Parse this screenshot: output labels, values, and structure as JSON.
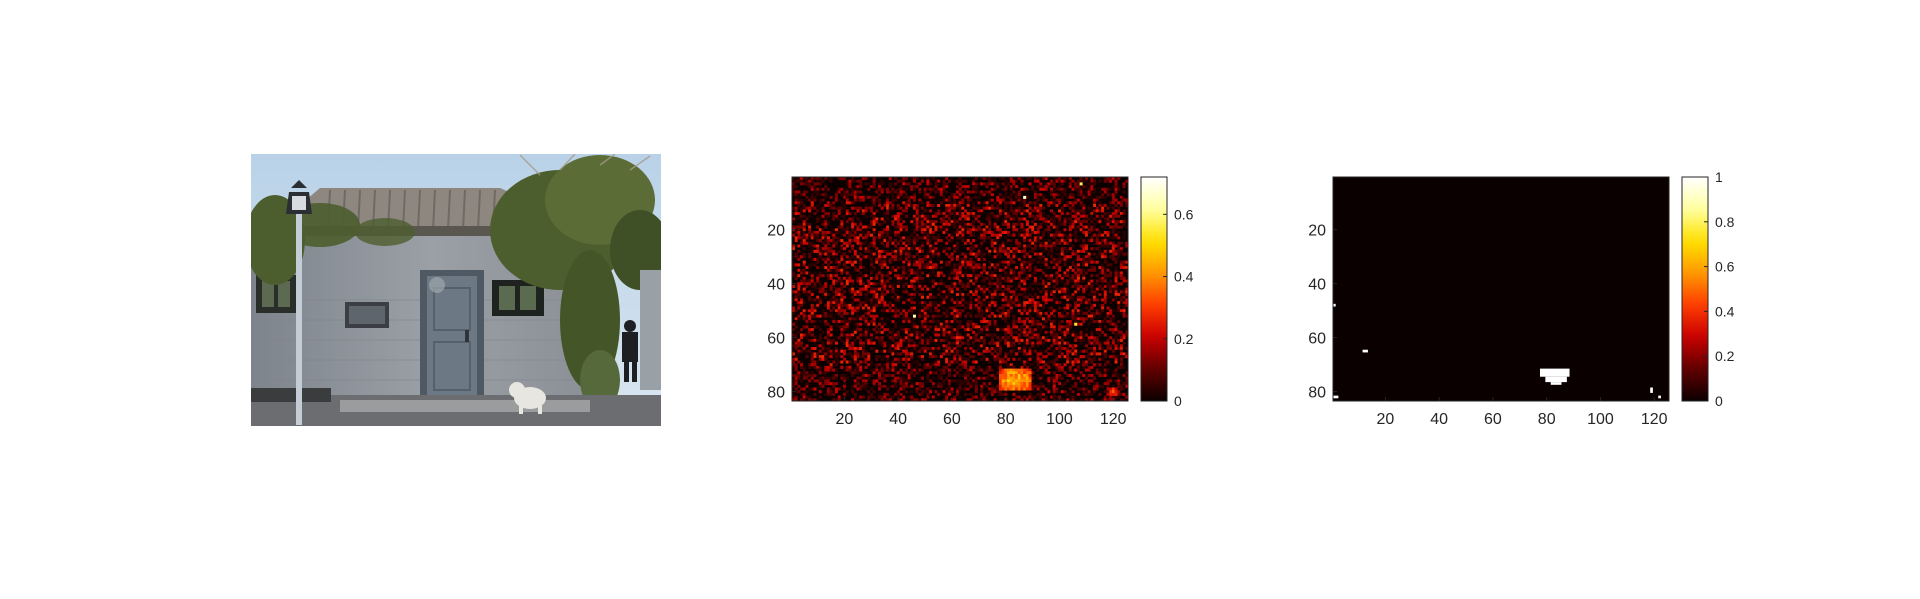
{
  "figure": {
    "panels": 3,
    "photo": {
      "description": "",
      "colors": {
        "sky": "#b9d2e8",
        "wall": "#8f939a",
        "roof": "#8d8780",
        "foliage": "#4d5e2e",
        "door": "#6c7884",
        "ground": "#6b6d70",
        "dog": "#e8e6e0"
      }
    },
    "colormap": "hot",
    "colormap_stops": [
      "#0b0000",
      "#600000",
      "#c80000",
      "#ff3c00",
      "#ff9800",
      "#ffe000",
      "#ffffa0",
      "#ffffff"
    ]
  },
  "chart_data": [
    {
      "type": "heatmap",
      "title": "",
      "xlabel": "",
      "ylabel": "",
      "grid": false,
      "x_range": [
        1,
        125
      ],
      "y_range": [
        1,
        83
      ],
      "y_reversed": true,
      "x_ticks": [
        20,
        40,
        60,
        80,
        100,
        120
      ],
      "y_ticks": [
        20,
        40,
        60,
        80
      ],
      "colorbar": {
        "range": [
          0,
          0.72
        ],
        "ticks": [
          0,
          0.2,
          0.4,
          0.6
        ],
        "labels": [
          "0",
          "0.2",
          "0.4",
          "0.6"
        ]
      },
      "background_intensity": 0.05,
      "hotspots": [
        {
          "x": 84,
          "y": 76,
          "w": 12,
          "h": 8,
          "value": 0.45
        },
        {
          "x": 46,
          "y": 52,
          "w": 1,
          "h": 1,
          "value": 0.55
        },
        {
          "x": 87,
          "y": 8,
          "w": 1,
          "h": 1,
          "value": 0.6
        },
        {
          "x": 106,
          "y": 55,
          "w": 1,
          "h": 1,
          "value": 0.5
        },
        {
          "x": 108,
          "y": 3,
          "w": 1,
          "h": 1,
          "value": 0.5
        },
        {
          "x": 120,
          "y": 80,
          "w": 3,
          "h": 3,
          "value": 0.3
        }
      ]
    },
    {
      "type": "heatmap",
      "title": "",
      "xlabel": "",
      "ylabel": "",
      "grid": false,
      "x_range": [
        1,
        125
      ],
      "y_range": [
        1,
        83
      ],
      "y_reversed": true,
      "x_ticks": [
        20,
        40,
        60,
        80,
        100,
        120
      ],
      "y_ticks": [
        20,
        40,
        60,
        80
      ],
      "colorbar": {
        "range": [
          0,
          1
        ],
        "ticks": [
          0,
          0.2,
          0.4,
          0.6,
          0.8,
          1
        ],
        "labels": [
          "0",
          "0.2",
          "0.4",
          "0.6",
          "0.8",
          "1"
        ]
      },
      "binary": true,
      "white_regions": [
        {
          "x": 78,
          "y": 72,
          "w": 11,
          "h": 3
        },
        {
          "x": 80,
          "y": 75,
          "w": 8,
          "h": 2
        },
        {
          "x": 82,
          "y": 77,
          "w": 4,
          "h": 1
        },
        {
          "x": 12,
          "y": 65,
          "w": 2,
          "h": 1
        },
        {
          "x": 1,
          "y": 48,
          "w": 1,
          "h": 1
        },
        {
          "x": 1,
          "y": 82,
          "w": 2,
          "h": 1
        },
        {
          "x": 119,
          "y": 79,
          "w": 1,
          "h": 2
        },
        {
          "x": 122,
          "y": 82,
          "w": 1,
          "h": 1
        }
      ]
    }
  ]
}
